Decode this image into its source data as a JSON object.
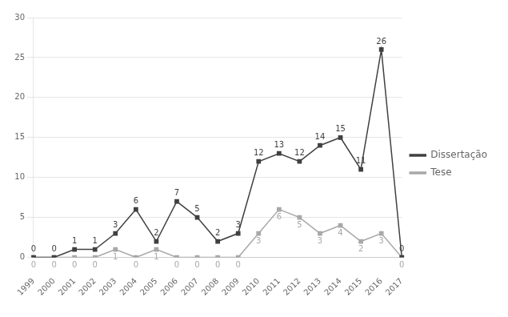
{
  "chart_data": {
    "type": "line",
    "categories": [
      "1999",
      "2000",
      "2001",
      "2002",
      "2003",
      "2004",
      "2005",
      "2006",
      "2007",
      "2008",
      "2009",
      "2010",
      "2011",
      "2012",
      "2013",
      "2014",
      "2015",
      "2016",
      "2017"
    ],
    "series": [
      {
        "name": "Dissertação",
        "color": "#404040",
        "marker": "square",
        "values": [
          0,
          0,
          1,
          1,
          3,
          6,
          2,
          7,
          5,
          2,
          3,
          12,
          13,
          12,
          14,
          15,
          11,
          26,
          0
        ]
      },
      {
        "name": "Tese",
        "color": "#a8a8a8",
        "marker": "square",
        "values": [
          0,
          0,
          0,
          0,
          1,
          0,
          1,
          0,
          0,
          0,
          0,
          3,
          6,
          5,
          3,
          4,
          2,
          3,
          0
        ]
      }
    ],
    "ylim": [
      0,
      30
    ],
    "yticks": [
      0,
      5,
      10,
      15,
      20,
      25,
      30
    ],
    "grid": true,
    "legend": "right",
    "data_labels": true
  }
}
